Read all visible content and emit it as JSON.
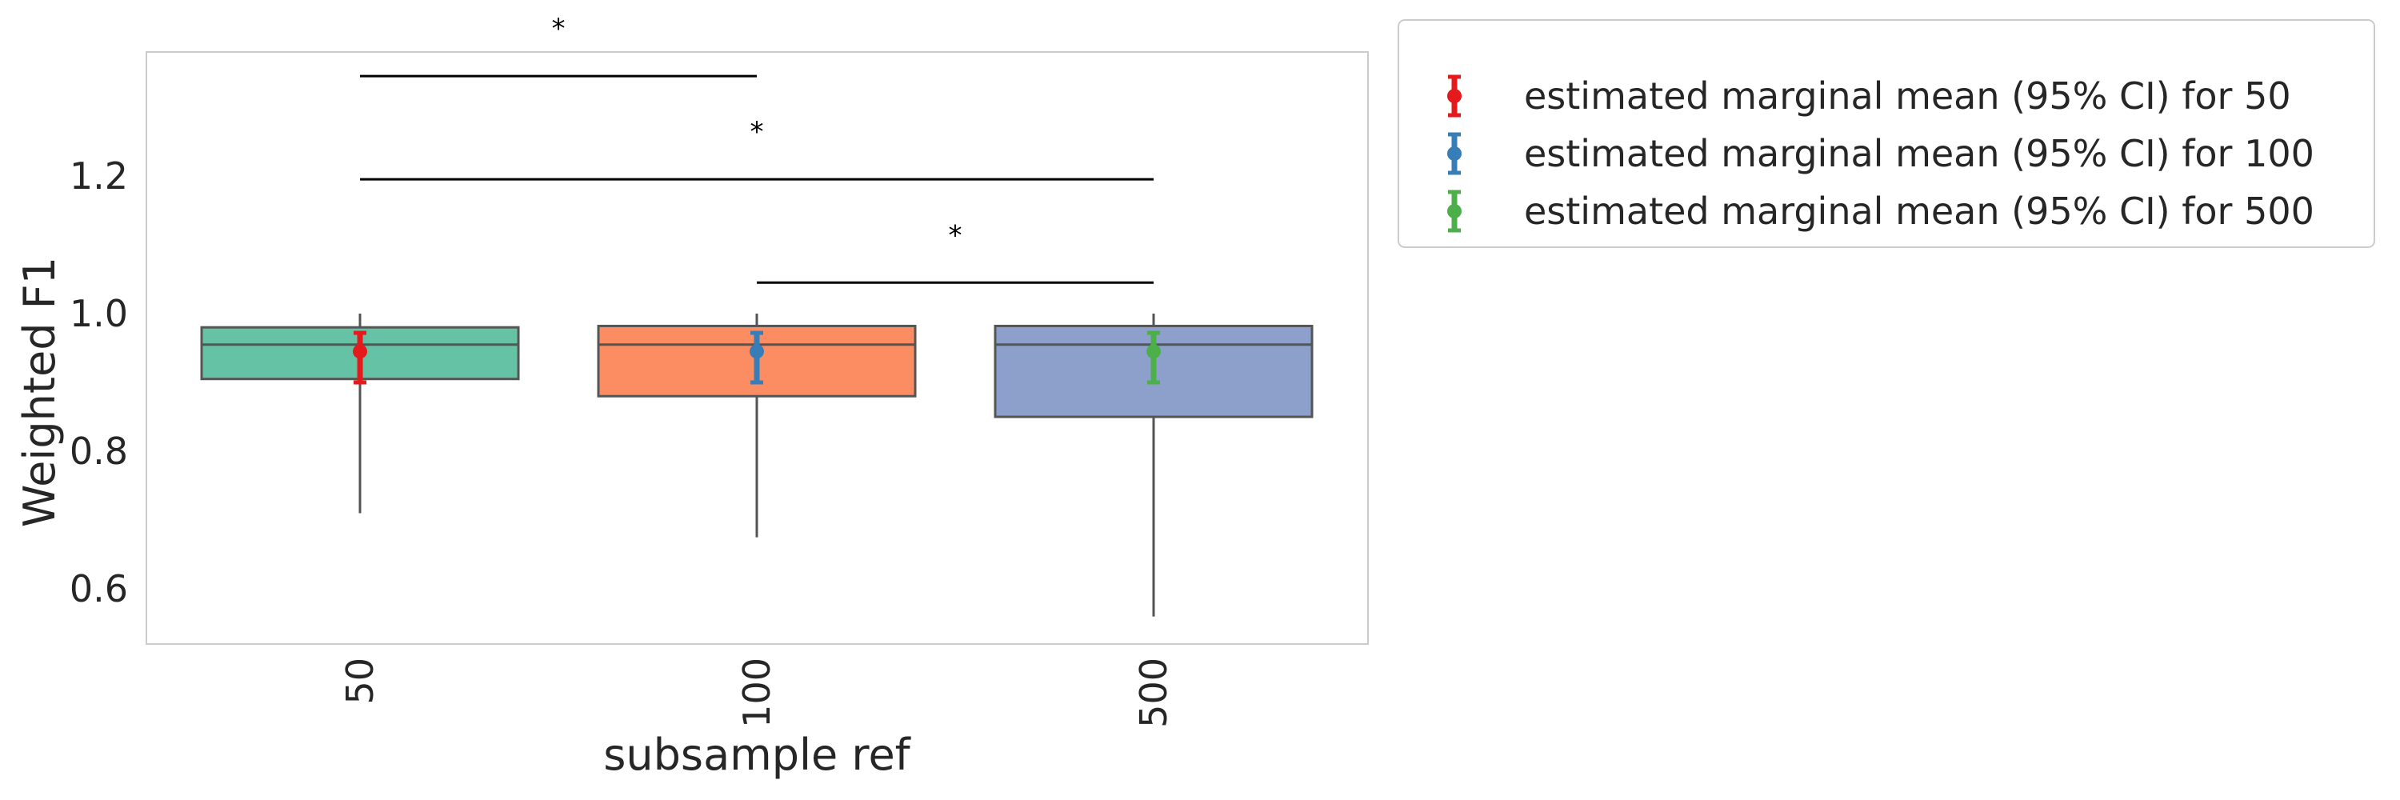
{
  "chart_data": {
    "type": "box",
    "xlabel": "subsample ref",
    "ylabel": "Weighted F1",
    "categories": [
      "50",
      "100",
      "500"
    ],
    "yticks": [
      "0.6",
      "0.8",
      "1.0",
      "1.2"
    ],
    "ylim": [
      0.52,
      1.38
    ],
    "grid": false,
    "legend_position": "outside-top-right",
    "boxes": [
      {
        "category": "50",
        "whisker_low": 0.71,
        "q1": 0.905,
        "median": 0.955,
        "q3": 0.98,
        "whisker_high": 1.0,
        "color": "#66c2a5"
      },
      {
        "category": "100",
        "whisker_low": 0.675,
        "q1": 0.88,
        "median": 0.955,
        "q3": 0.982,
        "whisker_high": 1.0,
        "color": "#fc8d62"
      },
      {
        "category": "500",
        "whisker_low": 0.56,
        "q1": 0.85,
        "median": 0.955,
        "q3": 0.982,
        "whisker_high": 1.0,
        "color": "#8da0cb"
      }
    ],
    "marginal_means": [
      {
        "category": "50",
        "mean": 0.945,
        "ci_low": 0.9,
        "ci_high": 0.972,
        "color": "#e41a1c"
      },
      {
        "category": "100",
        "mean": 0.945,
        "ci_low": 0.9,
        "ci_high": 0.972,
        "color": "#377eb8"
      },
      {
        "category": "500",
        "mean": 0.945,
        "ci_low": 0.9,
        "ci_high": 0.972,
        "color": "#4daf4a"
      }
    ],
    "significance": [
      {
        "from": "50",
        "to": "100",
        "y": 1.345,
        "label": "*"
      },
      {
        "from": "50",
        "to": "500",
        "y": 1.195,
        "label": "*"
      },
      {
        "from": "100",
        "to": "500",
        "y": 1.045,
        "label": "*"
      }
    ],
    "legend": [
      {
        "label": "estimated marginal mean (95% CI) for 50",
        "color": "#e41a1c"
      },
      {
        "label": "estimated marginal mean (95% CI) for 100",
        "color": "#377eb8"
      },
      {
        "label": "estimated marginal mean (95% CI) for 500",
        "color": "#4daf4a"
      }
    ]
  }
}
